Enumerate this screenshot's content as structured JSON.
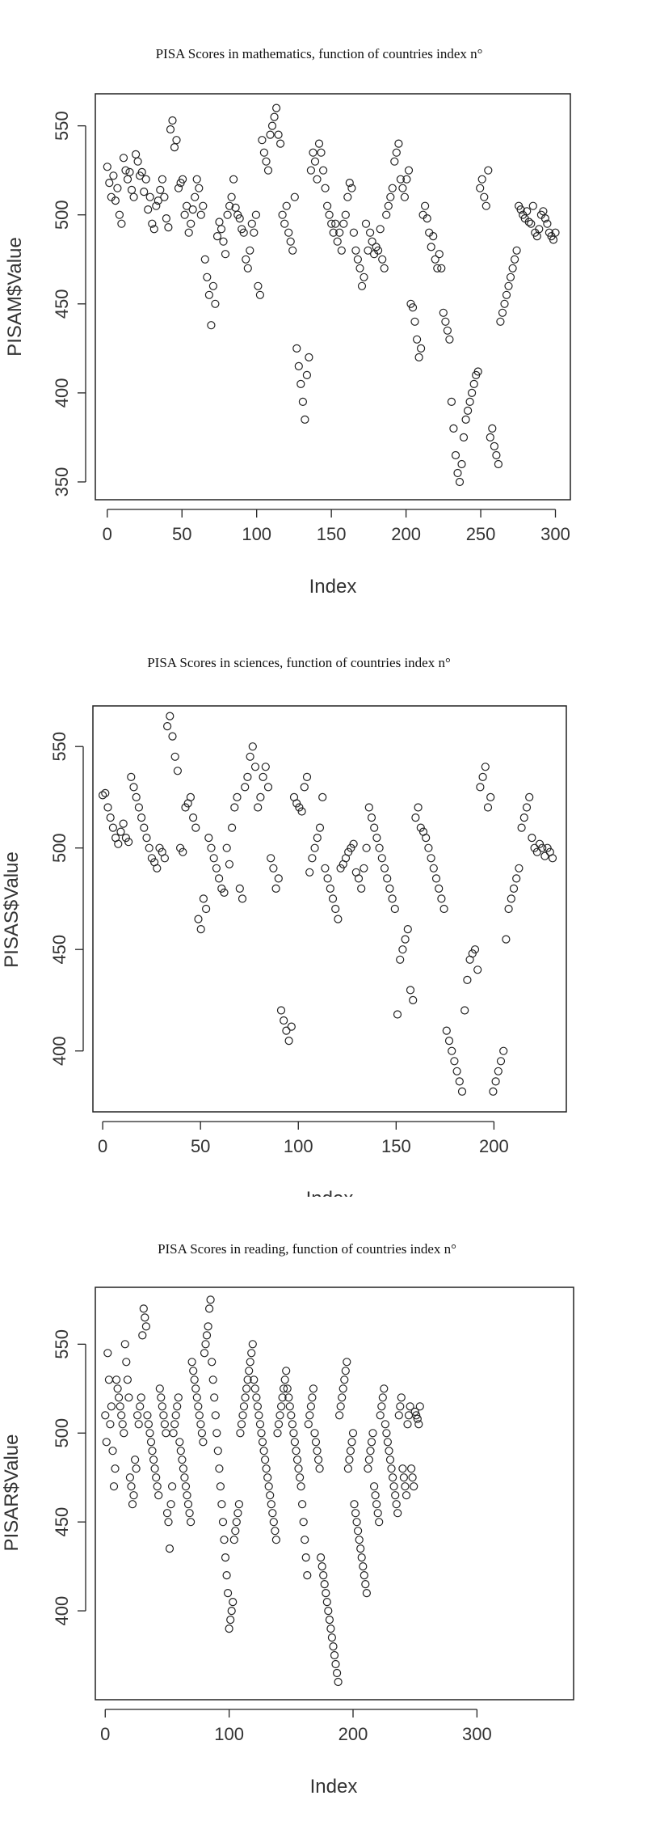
{
  "chart_data": [
    {
      "type": "scatter",
      "title": "PISA Scores in mathematics, function of countries index n°",
      "xlabel": "Index",
      "ylabel": "PISAM$Value",
      "xlim": [
        -8,
        310
      ],
      "ylim": [
        340,
        568
      ],
      "xticks": [
        0,
        50,
        100,
        150,
        200,
        250,
        300
      ],
      "yticks": [
        350,
        400,
        450,
        500,
        550
      ],
      "y": [
        527,
        518,
        510,
        522,
        508,
        515,
        500,
        495,
        532,
        525,
        520,
        524,
        514,
        510,
        534,
        530,
        522,
        524,
        513,
        520,
        503,
        510,
        495,
        492,
        505,
        508,
        514,
        520,
        510,
        498,
        493,
        548,
        553,
        538,
        542,
        515,
        518,
        520,
        500,
        505,
        490,
        495,
        503,
        510,
        520,
        515,
        500,
        505,
        475,
        465,
        455,
        438,
        460,
        450,
        488,
        496,
        492,
        485,
        478,
        500,
        505,
        510,
        520,
        504,
        500,
        498,
        492,
        490,
        475,
        470,
        480,
        495,
        490,
        500,
        460,
        455,
        542,
        535,
        530,
        525,
        545,
        550,
        555,
        560,
        545,
        540,
        500,
        495,
        505,
        490,
        485,
        480,
        510,
        425,
        415,
        405,
        395,
        385,
        410,
        420,
        525,
        535,
        530,
        520,
        540,
        535,
        525,
        515,
        505,
        500,
        495,
        490,
        495,
        485,
        490,
        480,
        495,
        500,
        510,
        518,
        515,
        490,
        480,
        475,
        470,
        460,
        465,
        495,
        480,
        490,
        485,
        478,
        482,
        480,
        492,
        475,
        470,
        500,
        505,
        510,
        515,
        530,
        535,
        540,
        520,
        515,
        510,
        520,
        525,
        450,
        448,
        440,
        430,
        420,
        425,
        500,
        505,
        498,
        490,
        482,
        488,
        475,
        470,
        478,
        470,
        445,
        440,
        435,
        430,
        395,
        380,
        365,
        355,
        350,
        360,
        375,
        385,
        390,
        395,
        400,
        405,
        410,
        412,
        515,
        520,
        510,
        505,
        525,
        375,
        380,
        370,
        365,
        360,
        440,
        445,
        450,
        455,
        460,
        465,
        470,
        475,
        480,
        505,
        503,
        500,
        498,
        502,
        496,
        495,
        505,
        490,
        488,
        492,
        500,
        502,
        498,
        495,
        490,
        488,
        486,
        490
      ],
      "x_max_index": 300
    },
    {
      "type": "scatter",
      "title": "PISA Scores in sciences, function of countries index n°",
      "xlabel": "Index",
      "ylabel": "PISAS$Value",
      "xlim": [
        -5,
        237
      ],
      "ylim": [
        370,
        570
      ],
      "xticks": [
        0,
        50,
        100,
        150,
        200
      ],
      "yticks": [
        400,
        450,
        500,
        550
      ],
      "y": [
        526,
        527,
        520,
        515,
        510,
        505,
        502,
        508,
        512,
        505,
        503,
        535,
        530,
        525,
        520,
        515,
        510,
        505,
        500,
        495,
        493,
        490,
        500,
        498,
        495,
        560,
        565,
        555,
        545,
        538,
        500,
        498,
        520,
        522,
        525,
        515,
        510,
        465,
        460,
        475,
        470,
        505,
        500,
        495,
        490,
        485,
        480,
        478,
        500,
        492,
        510,
        520,
        525,
        480,
        475,
        530,
        535,
        545,
        550,
        540,
        520,
        525,
        535,
        540,
        530,
        495,
        490,
        480,
        485,
        420,
        415,
        410,
        405,
        412,
        525,
        522,
        520,
        518,
        530,
        535,
        488,
        495,
        500,
        505,
        510,
        525,
        490,
        485,
        480,
        475,
        470,
        465,
        490,
        492,
        495,
        498,
        500,
        502,
        488,
        485,
        480,
        490,
        500,
        520,
        515,
        510,
        505,
        500,
        495,
        490,
        485,
        480,
        475,
        470,
        418,
        445,
        450,
        455,
        460,
        430,
        425,
        515,
        520,
        510,
        508,
        505,
        500,
        495,
        490,
        485,
        480,
        475,
        470,
        410,
        405,
        400,
        395,
        390,
        385,
        380,
        420,
        435,
        445,
        448,
        450,
        440,
        530,
        535,
        540,
        520,
        525,
        380,
        385,
        390,
        395,
        400,
        455,
        470,
        475,
        480,
        485,
        490,
        510,
        515,
        520,
        525,
        505,
        500,
        498,
        502,
        500,
        496,
        500,
        498,
        495
      ],
      "x_max_index": 230
    },
    {
      "type": "scatter",
      "title": "PISA Scores in reading, function of countries index n°",
      "xlabel": "Index",
      "ylabel": "PISAR$Value",
      "xlim": [
        -8,
        378
      ],
      "ylim": [
        350,
        582
      ],
      "xticks": [
        0,
        100,
        200,
        300
      ],
      "yticks": [
        400,
        450,
        500,
        550
      ],
      "y": [
        510,
        495,
        545,
        530,
        505,
        515,
        490,
        470,
        480,
        530,
        525,
        520,
        515,
        510,
        505,
        500,
        550,
        540,
        530,
        520,
        475,
        470,
        460,
        465,
        485,
        480,
        510,
        505,
        515,
        520,
        555,
        570,
        565,
        560,
        510,
        505,
        500,
        495,
        490,
        485,
        480,
        475,
        470,
        465,
        525,
        520,
        515,
        510,
        505,
        500,
        455,
        450,
        435,
        460,
        470,
        500,
        505,
        510,
        515,
        520,
        495,
        490,
        485,
        480,
        475,
        470,
        465,
        460,
        455,
        450,
        540,
        535,
        530,
        525,
        520,
        515,
        510,
        505,
        500,
        495,
        545,
        550,
        555,
        560,
        570,
        575,
        540,
        530,
        520,
        510,
        500,
        490,
        480,
        470,
        460,
        450,
        440,
        430,
        420,
        410,
        390,
        395,
        400,
        405,
        440,
        445,
        450,
        455,
        460,
        500,
        505,
        510,
        515,
        520,
        525,
        530,
        535,
        540,
        545,
        550,
        530,
        525,
        520,
        515,
        510,
        505,
        500,
        495,
        490,
        485,
        480,
        475,
        470,
        465,
        460,
        455,
        450,
        445,
        440,
        500,
        505,
        510,
        515,
        520,
        525,
        530,
        535,
        525,
        520,
        515,
        510,
        505,
        500,
        495,
        490,
        485,
        480,
        475,
        470,
        460,
        450,
        440,
        430,
        420,
        505,
        510,
        515,
        520,
        525,
        500,
        495,
        490,
        485,
        480,
        430,
        425,
        420,
        415,
        410,
        405,
        400,
        395,
        390,
        385,
        380,
        375,
        370,
        365,
        360,
        510,
        515,
        520,
        525,
        530,
        535,
        540,
        480,
        485,
        490,
        495,
        500,
        460,
        455,
        450,
        445,
        440,
        435,
        430,
        425,
        420,
        415,
        410,
        480,
        485,
        490,
        495,
        500,
        470,
        465,
        460,
        455,
        450,
        510,
        515,
        520,
        525,
        505,
        500,
        495,
        490,
        485,
        480,
        475,
        470,
        465,
        460,
        455,
        510,
        515,
        520,
        480,
        475,
        470,
        465,
        505,
        510,
        515,
        480,
        475,
        470,
        512,
        510,
        508,
        505,
        515
      ]
    }
  ]
}
